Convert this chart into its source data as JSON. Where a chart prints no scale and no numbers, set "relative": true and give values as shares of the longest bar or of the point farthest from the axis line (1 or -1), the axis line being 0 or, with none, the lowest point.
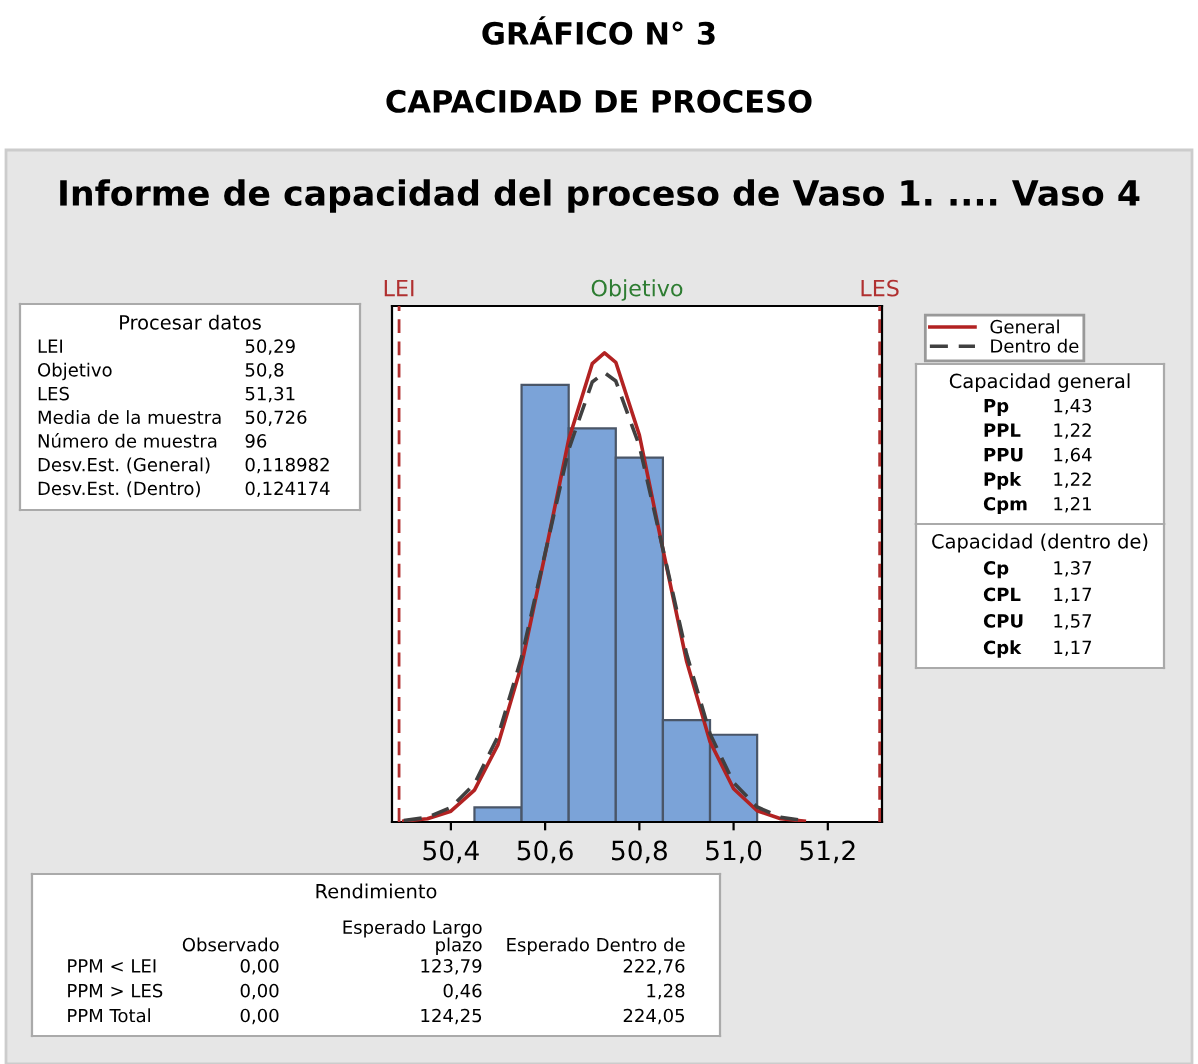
{
  "chart_data": [
    {
      "type": "histogram",
      "title": "GRÁFICO N° 3",
      "subtitle": "CAPACIDAD DE PROCESO",
      "annotations": [
        "Informe de capacidad del proceso de Vaso 1. .... Vaso 4",
        "Objetivo"
      ],
      "relative": true,
      "bins": [
        50.45,
        50.55,
        50.65,
        50.75,
        50.85,
        50.95,
        51.05
      ],
      "values": [
        0.031,
        0.932,
        0.839,
        0.777,
        0.217,
        0.186
      ],
      "color": "#7ba3d8",
      "series": [
        {
          "name": "General",
          "type": "line",
          "color": "#b22222",
          "line_style": "solid",
          "x": [
            50.3,
            50.35,
            50.4,
            50.45,
            50.5,
            50.55,
            50.6,
            50.65,
            50.7,
            50.726,
            50.75,
            50.8,
            50.85,
            50.9,
            50.95,
            51.0,
            51.05,
            51.1,
            51.15
          ],
          "values": [
            0.002,
            0.007,
            0.023,
            0.068,
            0.165,
            0.335,
            0.571,
            0.815,
            0.977,
            1.0,
            0.98,
            0.825,
            0.581,
            0.344,
            0.171,
            0.071,
            0.024,
            0.007,
            0.002
          ]
        },
        {
          "name": "Dentro de",
          "type": "line",
          "color": "#404040",
          "line_style": "dashed",
          "x": [
            50.3,
            50.35,
            50.4,
            50.45,
            50.5,
            50.55,
            50.6,
            50.65,
            50.7,
            50.726,
            50.75,
            50.8,
            50.85,
            50.9,
            50.95,
            51.0,
            51.05,
            51.1,
            51.15
          ],
          "values": [
            0.003,
            0.01,
            0.031,
            0.081,
            0.183,
            0.351,
            0.573,
            0.794,
            0.938,
            0.958,
            0.94,
            0.802,
            0.582,
            0.359,
            0.188,
            0.084,
            0.032,
            0.01,
            0.003
          ]
        }
      ],
      "xlim": [
        50.275,
        51.315
      ],
      "xticks": [
        {
          "value": 50.4,
          "label": "50,4"
        },
        {
          "value": 50.6,
          "label": "50,6"
        },
        {
          "value": 50.8,
          "label": "50,8"
        },
        {
          "value": 51.0,
          "label": "51,0"
        },
        {
          "value": 51.2,
          "label": "51,2"
        }
      ],
      "ref_lines": [
        {
          "axis": "x",
          "value": 50.29,
          "label": "LEI",
          "color": "#b03030",
          "line_style": "dashed"
        },
        {
          "axis": "x",
          "value": 51.31,
          "label": "LES",
          "color": "#b03030",
          "line_style": "dashed"
        }
      ],
      "legend": "top right"
    },
    {
      "type": "other",
      "title": "Procesar datos",
      "y_categories": [
        "LEI",
        "Objetivo",
        "LES",
        "Media de la muestra",
        "Número de muestra",
        "Desv.Est. (General)",
        "Desv.Est. (Dentro)"
      ],
      "cell_labels": [
        [
          "50,29"
        ],
        [
          "50,8"
        ],
        [
          "51,31"
        ],
        [
          "50,726"
        ],
        [
          "96"
        ],
        [
          "0,118982"
        ],
        [
          "0,124174"
        ]
      ]
    },
    {
      "type": "other",
      "title": "Capacidad general",
      "y_categories": [
        "Pp",
        "PPL",
        "PPU",
        "Ppk",
        "Cpm"
      ],
      "cell_labels": [
        [
          "1,43"
        ],
        [
          "1,22"
        ],
        [
          "1,64"
        ],
        [
          "1,22"
        ],
        [
          "1,21"
        ]
      ]
    },
    {
      "type": "other",
      "title": "Capacidad (dentro de)",
      "y_categories": [
        "Cp",
        "CPL",
        "CPU",
        "Cpk"
      ],
      "cell_labels": [
        [
          "1,37"
        ],
        [
          "1,17"
        ],
        [
          "1,57"
        ],
        [
          "1,17"
        ]
      ]
    },
    {
      "type": "other",
      "title": "Rendimiento",
      "categories": [
        "Observado",
        "Esperado Largo\nplazo",
        "Esperado Dentro de"
      ],
      "y_categories": [
        "PPM < LEI",
        "PPM > LES",
        "PPM Total"
      ],
      "cell_labels": [
        [
          "0,00",
          "123,79",
          "222,76"
        ],
        [
          "0,00",
          "0,46",
          "1,28"
        ],
        [
          "0,00",
          "124,25",
          "224,05"
        ]
      ]
    }
  ]
}
